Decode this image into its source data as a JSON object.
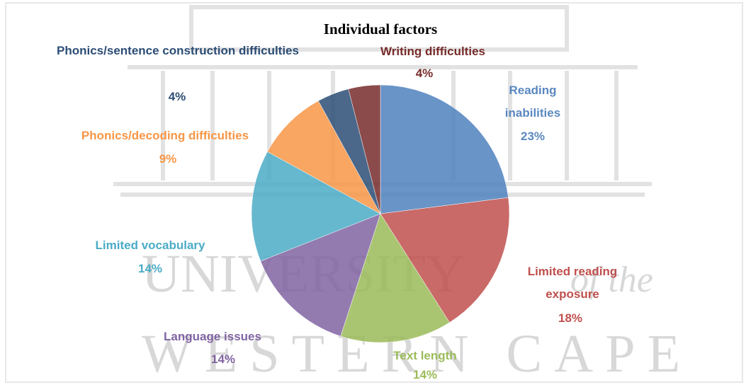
{
  "chart_data": {
    "type": "pie",
    "title": "Individual factors",
    "categories": [
      "Reading inabilities",
      "Limited reading exposure",
      "Text length",
      "Language issues",
      "Limited vocabulary",
      "Phonics/decoding difficulties",
      "Phonics/sentence construction difficulties",
      "Writing difficulties"
    ],
    "values": [
      23,
      18,
      14,
      14,
      14,
      9,
      4,
      4
    ],
    "value_labels": [
      "23%",
      "18%",
      "14%",
      "14%",
      "14%",
      "9%",
      "4%",
      "4%"
    ],
    "colors": [
      "#4f81bd",
      "#c0504d",
      "#9bbb59",
      "#8064a2",
      "#4bacc6",
      "#f79646",
      "#2c4d75",
      "#772c2a"
    ],
    "label_colors": [
      "#5b88c0",
      "#c0504d",
      "#9bbb59",
      "#8064a2",
      "#4bacc6",
      "#f79646",
      "#2c4d75",
      "#772c2a"
    ]
  },
  "watermark": [
    "UNIVERSITY",
    "of the",
    "WESTERN CAPE"
  ]
}
